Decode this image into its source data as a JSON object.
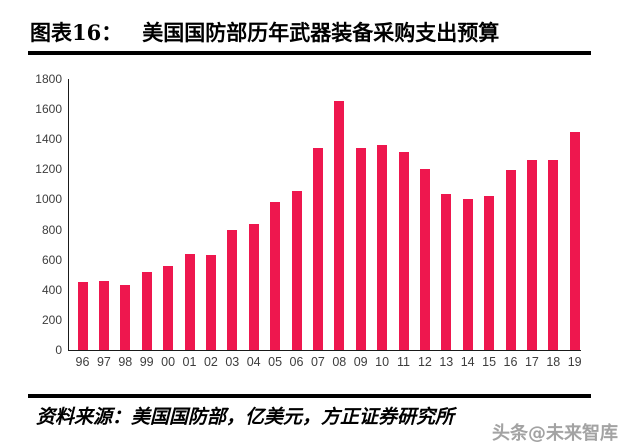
{
  "page": {
    "title_prefix": "图表16：",
    "title_text": "美国国防部历年武器装备采购支出预算",
    "footer_source": "资料来源：美国国防部，亿美元，方正证券研究所",
    "watermark": "头条@未来智库"
  },
  "chart_data": {
    "type": "bar",
    "title": "美国国防部历年武器装备采购支出预算",
    "unit": "亿美元",
    "categories": [
      "96",
      "97",
      "98",
      "99",
      "00",
      "01",
      "02",
      "03",
      "04",
      "05",
      "06",
      "07",
      "08",
      "09",
      "10",
      "11",
      "12",
      "13",
      "14",
      "15",
      "16",
      "17",
      "18",
      "19"
    ],
    "values": [
      450,
      460,
      435,
      515,
      560,
      640,
      630,
      800,
      840,
      985,
      1055,
      1345,
      1655,
      1345,
      1365,
      1315,
      1200,
      1035,
      1005,
      1025,
      1195,
      1260,
      1260,
      1450
    ],
    "xlabel": "",
    "ylabel": "",
    "ylim": [
      0,
      1800
    ],
    "yticks": [
      0,
      200,
      400,
      600,
      800,
      1000,
      1200,
      1400,
      1600,
      1800
    ],
    "bar_color": "#EE174E",
    "grid": false,
    "legend": "none"
  }
}
